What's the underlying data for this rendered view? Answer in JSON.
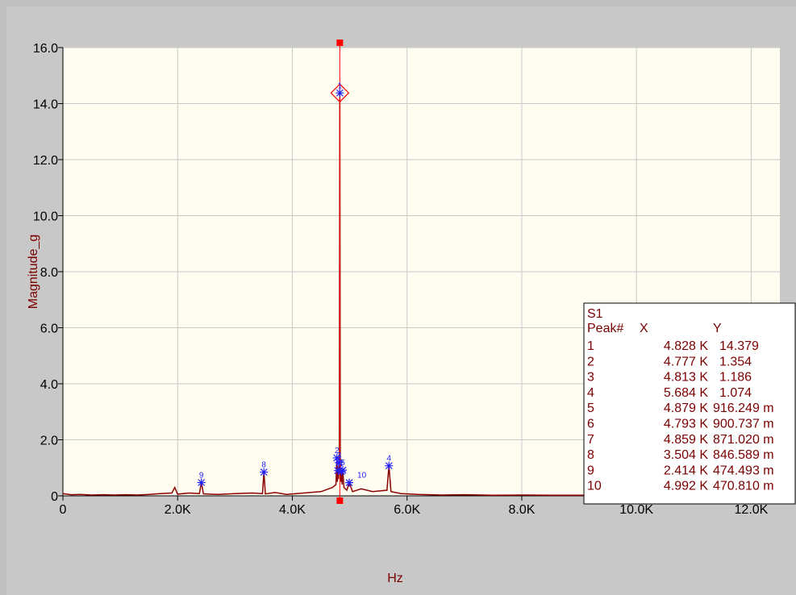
{
  "chart_data": {
    "type": "line",
    "xlabel": "Hz",
    "ylabel": "Magnitude_g",
    "xlim": [
      0,
      12500
    ],
    "ylim": [
      0,
      16
    ],
    "xticks": [
      0,
      {
        "value": 2000,
        "label": "2.0K"
      },
      {
        "value": 4000,
        "label": "4.0K"
      },
      {
        "value": 6000,
        "label": "6.0K"
      },
      {
        "value": 8000,
        "label": "8.0K"
      },
      {
        "value": 10000,
        "label": "10.0K"
      },
      {
        "value": 12000,
        "label": "12.0K"
      }
    ],
    "yticks": [
      0,
      {
        "value": 2,
        "label": "2.0"
      },
      {
        "value": 4,
        "label": "4.0"
      },
      {
        "value": 6,
        "label": "6.0"
      },
      {
        "value": 8,
        "label": "8.0"
      },
      {
        "value": 10,
        "label": "10.0"
      },
      {
        "value": 12,
        "label": "12.0"
      },
      {
        "value": 14,
        "label": "14.0"
      },
      {
        "value": 16,
        "label": "16.0"
      }
    ],
    "grid": true,
    "series": [
      {
        "color": "#8b0000",
        "x": [
          0,
          150,
          300,
          500,
          700,
          900,
          1100,
          1300,
          1500,
          1700,
          1900,
          1950,
          2000,
          2200,
          2380,
          2414,
          2450,
          2700,
          3000,
          3300,
          3480,
          3504,
          3530,
          3700,
          3900,
          4200,
          4500,
          4700,
          4760,
          4777,
          4785,
          4793,
          4803,
          4813,
          4820,
          4828,
          4836,
          4850,
          4859,
          4868,
          4879,
          4900,
          4950,
          4992,
          5050,
          5200,
          5400,
          5650,
          5684,
          5720,
          5900,
          6200,
          6600,
          7000,
          7500,
          8000,
          8500,
          9000,
          9500,
          10000,
          11000,
          12000,
          12500
        ],
        "values": [
          0.08,
          0.04,
          0.05,
          0.03,
          0.04,
          0.03,
          0.04,
          0.03,
          0.05,
          0.08,
          0.1,
          0.3,
          0.06,
          0.1,
          0.08,
          0.474,
          0.07,
          0.05,
          0.08,
          0.1,
          0.08,
          0.847,
          0.07,
          0.12,
          0.05,
          0.1,
          0.15,
          0.3,
          0.4,
          1.354,
          0.5,
          0.9,
          0.6,
          1.186,
          0.8,
          14.379,
          0.7,
          0.5,
          0.871,
          0.4,
          0.916,
          0.3,
          0.2,
          0.471,
          0.15,
          0.25,
          0.15,
          0.2,
          1.074,
          0.15,
          0.08,
          0.05,
          0.03,
          0.04,
          0.02,
          0.03,
          0.02,
          0.02,
          0.02,
          0.02,
          0.02,
          0.02,
          0.02
        ]
      }
    ],
    "peaks": {
      "color": "#2020ff",
      "labels": [
        "1",
        "2",
        "3",
        "4",
        "5",
        "6",
        "7",
        "8",
        "9",
        "10"
      ],
      "x": [
        4828,
        4777,
        4813,
        5684,
        4879,
        4793,
        4859,
        3504,
        2414,
        4992
      ],
      "values": [
        14.379,
        1.354,
        1.186,
        1.074,
        0.916249,
        0.900737,
        0.87102,
        0.846589,
        0.474493,
        0.47081
      ]
    },
    "cursor": {
      "color": "#ff0000",
      "x": 4828,
      "y": 14.379
    },
    "peak_table": {
      "title": "S1",
      "header": [
        "Peak#",
        "X",
        "Y"
      ],
      "rows": [
        [
          "1",
          "4.828 K",
          "14.379"
        ],
        [
          "2",
          "4.777 K",
          "1.354"
        ],
        [
          "3",
          "4.813 K",
          "1.186"
        ],
        [
          "4",
          "5.684 K",
          "1.074"
        ],
        [
          "5",
          "4.879 K",
          "916.249 m"
        ],
        [
          "6",
          "4.793 K",
          "900.737 m"
        ],
        [
          "7",
          "4.859 K",
          "871.020 m"
        ],
        [
          "8",
          "3.504 K",
          "846.589 m"
        ],
        [
          "9",
          "2.414 K",
          "474.493 m"
        ],
        [
          "10",
          "4.992 K",
          "470.810 m"
        ]
      ]
    }
  }
}
